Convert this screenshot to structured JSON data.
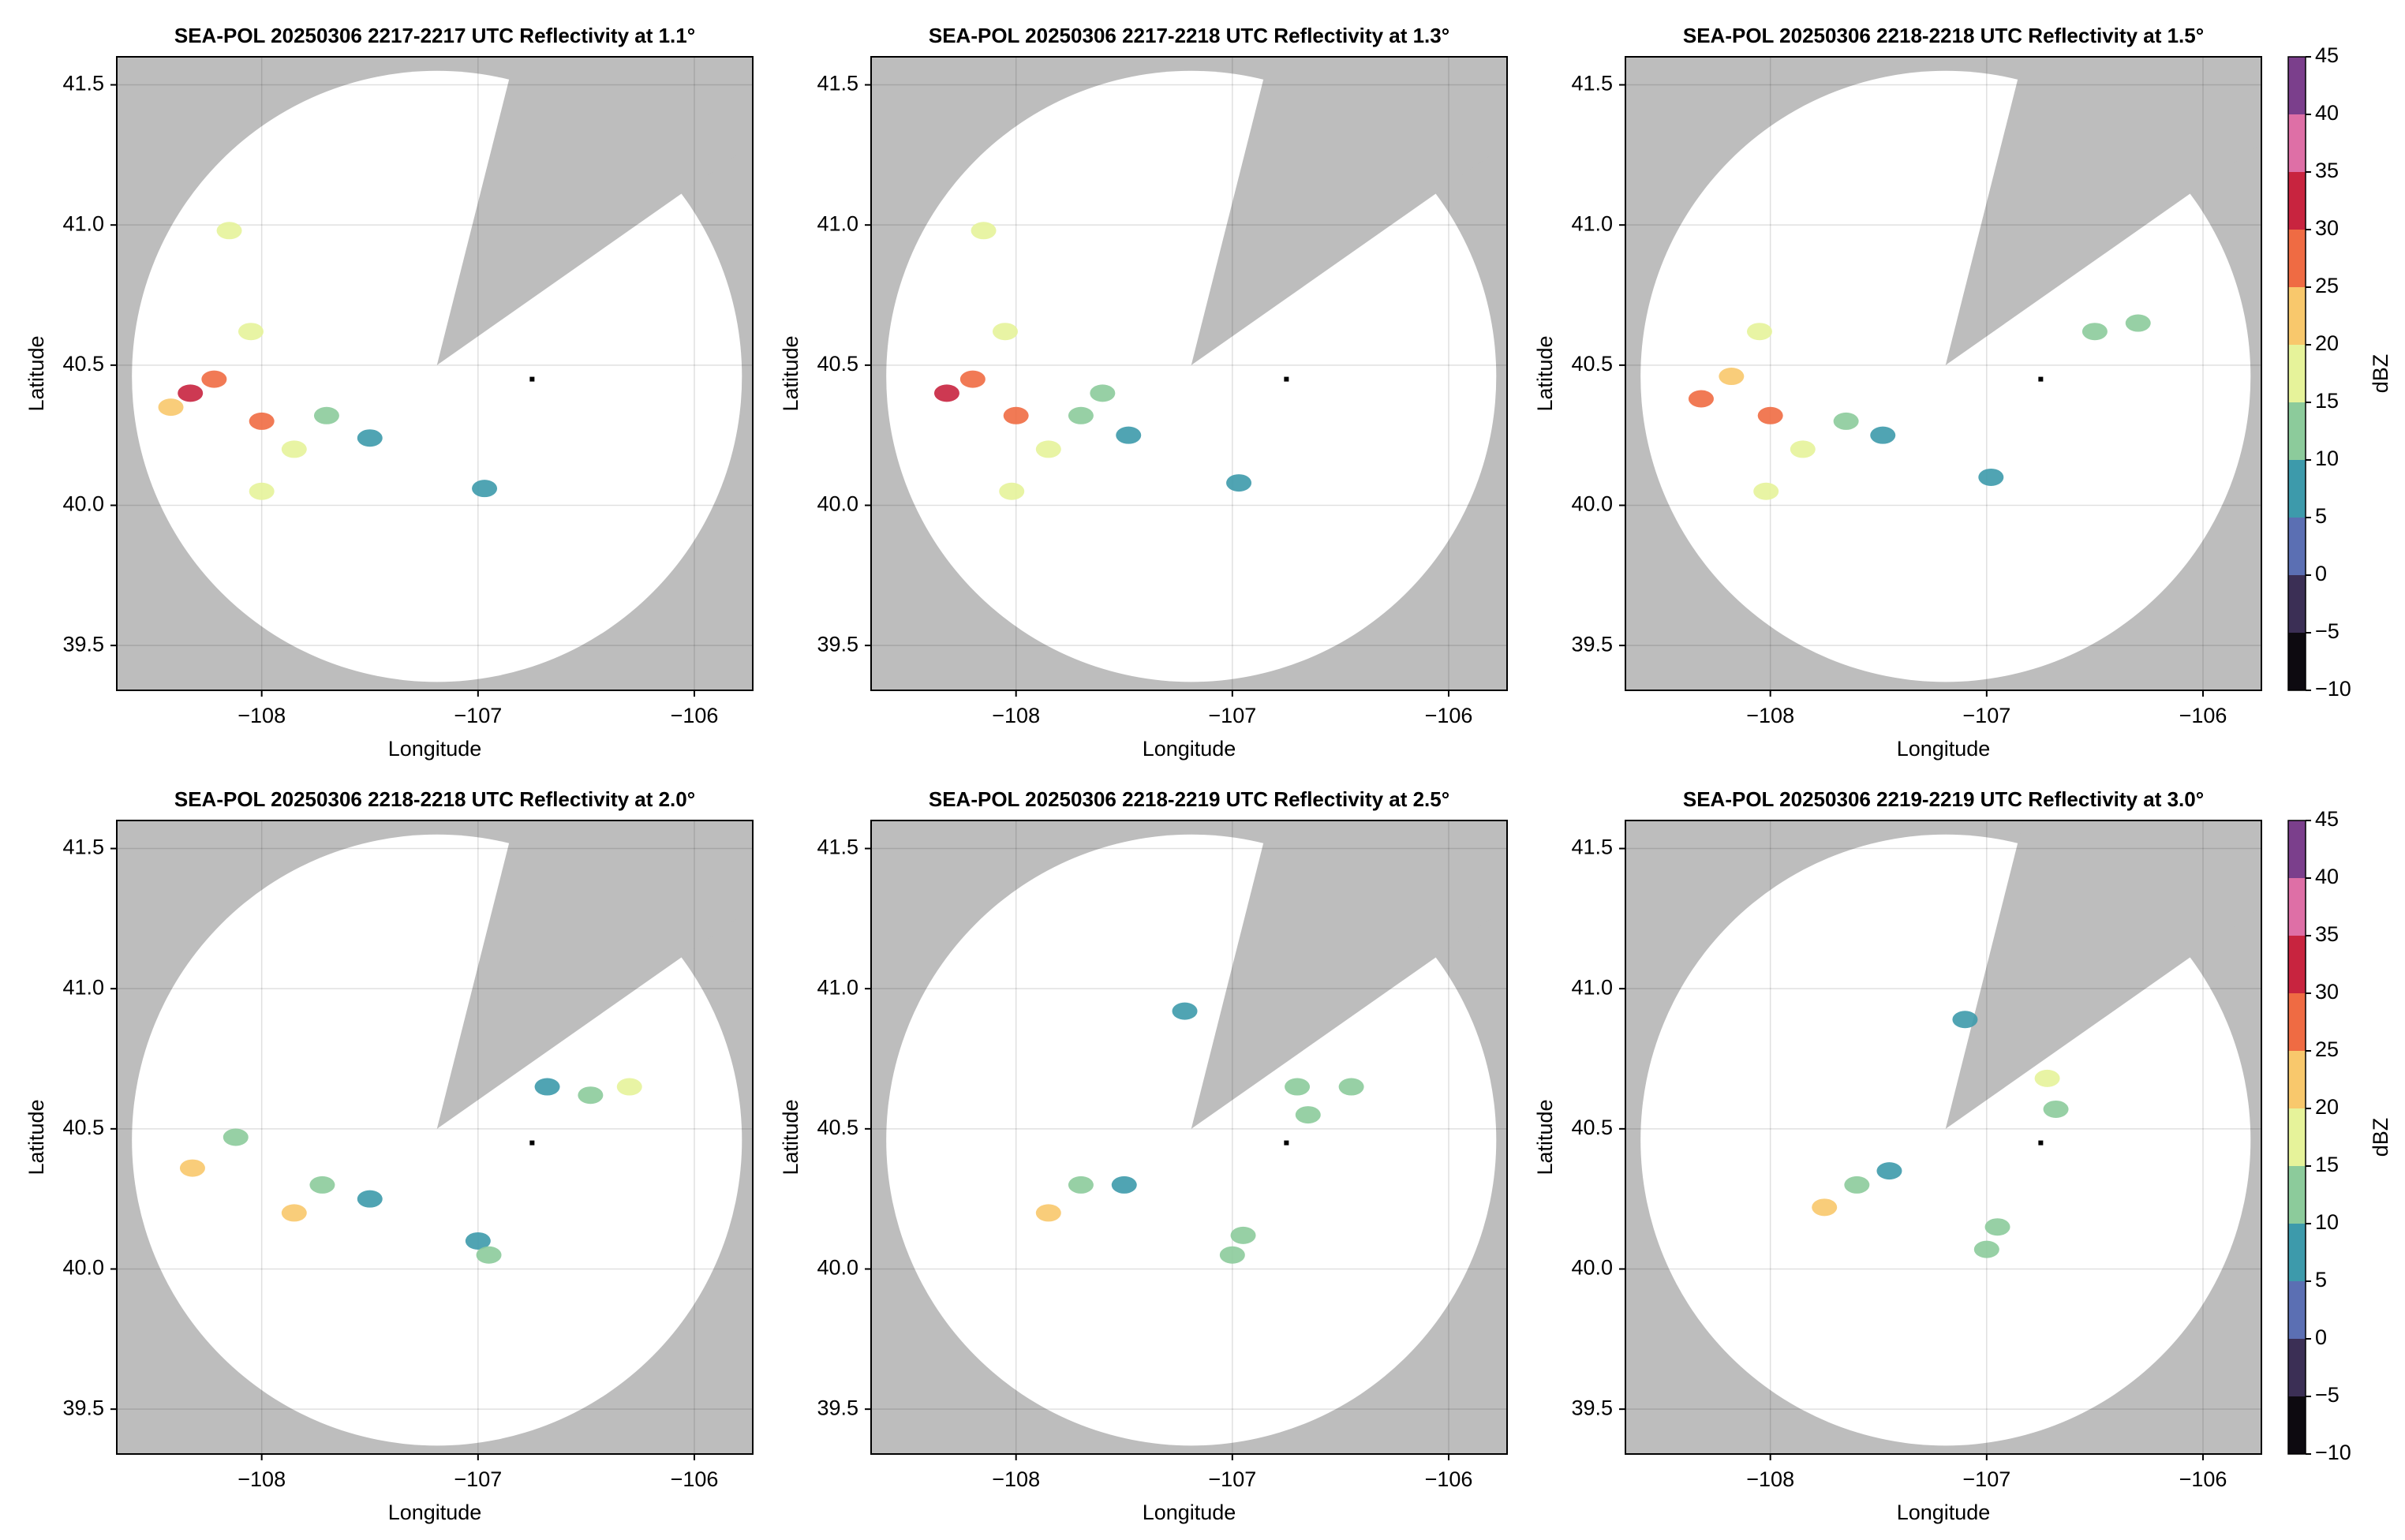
{
  "chart_data": [
    {
      "type": "radar",
      "title": "SEA-POL 20250306 2217-2217 UTC Reflectivity at 1.1°",
      "x_label": "Longitude",
      "y_label": "Latitude",
      "xlim": [
        -108.67,
        -105.73
      ],
      "ylim": [
        39.34,
        41.6
      ],
      "xticks": [
        {
          "value": -108,
          "label": "−108"
        },
        {
          "value": -107,
          "label": "−107"
        },
        {
          "value": -106,
          "label": "−106"
        }
      ],
      "yticks": [
        39.5,
        {
          "value": 40,
          "label": "40.0"
        },
        40.5,
        {
          "value": 41,
          "label": "41.0"
        },
        41.5
      ],
      "grid": true,
      "echoes": {
        "lon": [
          -108.33,
          -108.22,
          -108.05,
          -108.0,
          -107.85,
          -108.0,
          -107.7,
          -107.5,
          -106.97,
          -108.15,
          -108.42
        ],
        "lat": [
          40.4,
          40.45,
          40.62,
          40.3,
          40.2,
          40.05,
          40.32,
          40.24,
          40.06,
          40.98,
          40.35
        ],
        "dbz": [
          32,
          28,
          17,
          28,
          15,
          16,
          12,
          8,
          8,
          15,
          20
        ]
      }
    },
    {
      "type": "radar",
      "title": "SEA-POL 20250306 2217-2218 UTC Reflectivity at 1.3°",
      "x_label": "Longitude",
      "y_label": "Latitude",
      "xlim": [
        -108.67,
        -105.73
      ],
      "ylim": [
        39.34,
        41.6
      ],
      "xticks": [
        {
          "value": -108,
          "label": "−108"
        },
        {
          "value": -107,
          "label": "−107"
        },
        {
          "value": -106,
          "label": "−106"
        }
      ],
      "yticks": [
        39.5,
        {
          "value": 40,
          "label": "40.0"
        },
        40.5,
        {
          "value": 41,
          "label": "41.0"
        },
        41.5
      ],
      "grid": true,
      "echoes": {
        "lon": [
          -108.32,
          -108.2,
          -108.05,
          -108.0,
          -107.85,
          -108.02,
          -107.7,
          -107.48,
          -106.97,
          -108.15,
          -107.6
        ],
        "lat": [
          40.4,
          40.45,
          40.62,
          40.32,
          40.2,
          40.05,
          40.32,
          40.25,
          40.08,
          40.98,
          40.4
        ],
        "dbz": [
          30,
          26,
          17,
          27,
          15,
          16,
          12,
          8,
          8,
          16,
          12
        ]
      }
    },
    {
      "type": "radar",
      "title": "SEA-POL 20250306 2218-2218 UTC Reflectivity at 1.5°",
      "x_label": "Longitude",
      "y_label": "Latitude",
      "xlim": [
        -108.67,
        -105.73
      ],
      "ylim": [
        39.34,
        41.6
      ],
      "xticks": [
        {
          "value": -108,
          "label": "−108"
        },
        {
          "value": -107,
          "label": "−107"
        },
        {
          "value": -106,
          "label": "−106"
        }
      ],
      "yticks": [
        39.5,
        {
          "value": 40,
          "label": "40.0"
        },
        40.5,
        {
          "value": 41,
          "label": "41.0"
        },
        41.5
      ],
      "grid": true,
      "echoes": {
        "lon": [
          -108.32,
          -108.18,
          -108.05,
          -108.0,
          -107.85,
          -108.02,
          -107.65,
          -107.48,
          -106.98,
          -106.3,
          -106.5
        ],
        "lat": [
          40.38,
          40.46,
          40.62,
          40.32,
          40.2,
          40.05,
          40.3,
          40.25,
          40.1,
          40.65,
          40.62
        ],
        "dbz": [
          28,
          22,
          17,
          25,
          18,
          16,
          12,
          7,
          8,
          14,
          10
        ]
      },
      "colorbar": {
        "label": "dBZ",
        "ticks": [
          {
            "value": -10,
            "label": "−10"
          },
          {
            "value": -5,
            "label": "−5"
          },
          0,
          5,
          10,
          15,
          20,
          25,
          30,
          35,
          40,
          45
        ]
      }
    },
    {
      "type": "radar",
      "title": "SEA-POL 20250306 2218-2218 UTC Reflectivity at 2.0°",
      "x_label": "Longitude",
      "y_label": "Latitude",
      "xlim": [
        -108.67,
        -105.73
      ],
      "ylim": [
        39.34,
        41.6
      ],
      "xticks": [
        {
          "value": -108,
          "label": "−108"
        },
        {
          "value": -107,
          "label": "−107"
        },
        {
          "value": -106,
          "label": "−106"
        }
      ],
      "yticks": [
        39.5,
        {
          "value": 40,
          "label": "40.0"
        },
        40.5,
        {
          "value": 41,
          "label": "41.0"
        },
        41.5
      ],
      "grid": true,
      "echoes": {
        "lon": [
          -108.32,
          -108.12,
          -107.85,
          -107.72,
          -107.5,
          -107.0,
          -106.95,
          -106.68,
          -106.48,
          -106.3
        ],
        "lat": [
          40.36,
          40.47,
          40.2,
          40.3,
          40.25,
          40.1,
          40.05,
          40.65,
          40.62,
          40.65
        ],
        "dbz": [
          22,
          13,
          20,
          14,
          8,
          9,
          12,
          8,
          12,
          17
        ]
      }
    },
    {
      "type": "radar",
      "title": "SEA-POL 20250306 2218-2219 UTC Reflectivity at 2.5°",
      "x_label": "Longitude",
      "y_label": "Latitude",
      "xlim": [
        -108.67,
        -105.73
      ],
      "ylim": [
        39.34,
        41.6
      ],
      "xticks": [
        {
          "value": -108,
          "label": "−108"
        },
        {
          "value": -107,
          "label": "−107"
        },
        {
          "value": -106,
          "label": "−106"
        }
      ],
      "yticks": [
        39.5,
        {
          "value": 40,
          "label": "40.0"
        },
        40.5,
        {
          "value": 41,
          "label": "41.0"
        },
        41.5
      ],
      "grid": true,
      "echoes": {
        "lon": [
          -107.85,
          -107.7,
          -107.5,
          -107.0,
          -106.95,
          -106.7,
          -106.65,
          -107.22,
          -106.45
        ],
        "lat": [
          40.2,
          40.3,
          40.3,
          40.05,
          40.12,
          40.65,
          40.55,
          40.92,
          40.65
        ],
        "dbz": [
          20,
          13,
          8,
          14,
          12,
          14,
          10,
          9,
          12
        ]
      }
    },
    {
      "type": "radar",
      "title": "SEA-POL 20250306 2219-2219 UTC Reflectivity at 3.0°",
      "x_label": "Longitude",
      "y_label": "Latitude",
      "xlim": [
        -108.67,
        -105.73
      ],
      "ylim": [
        39.34,
        41.6
      ],
      "xticks": [
        {
          "value": -108,
          "label": "−108"
        },
        {
          "value": -107,
          "label": "−107"
        },
        {
          "value": -106,
          "label": "−106"
        }
      ],
      "yticks": [
        39.5,
        {
          "value": 40,
          "label": "40.0"
        },
        40.5,
        {
          "value": 41,
          "label": "41.0"
        },
        41.5
      ],
      "grid": true,
      "echoes": {
        "lon": [
          -107.75,
          -107.6,
          -107.45,
          -107.0,
          -106.95,
          -106.72,
          -106.68,
          -107.1
        ],
        "lat": [
          40.22,
          40.3,
          40.35,
          40.07,
          40.15,
          40.68,
          40.57,
          40.89
        ],
        "dbz": [
          22,
          12,
          8,
          11,
          14,
          15,
          12,
          9
        ]
      },
      "colorbar": {
        "label": "dBZ",
        "ticks": [
          {
            "value": -10,
            "label": "−10"
          },
          {
            "value": -5,
            "label": "−5"
          },
          0,
          5,
          10,
          15,
          20,
          25,
          30,
          35,
          40,
          45
        ]
      }
    }
  ],
  "colorscale": {
    "limits": [
      -10,
      45
    ],
    "colors": [
      "#0d0a10",
      "#3b2f55",
      "#5b6fb3",
      "#3d9aab",
      "#8ccb9b",
      "#e6f39a",
      "#f8c86c",
      "#ef6b43",
      "#c8243f",
      "#de6fa6",
      "#7b3f8c"
    ]
  }
}
